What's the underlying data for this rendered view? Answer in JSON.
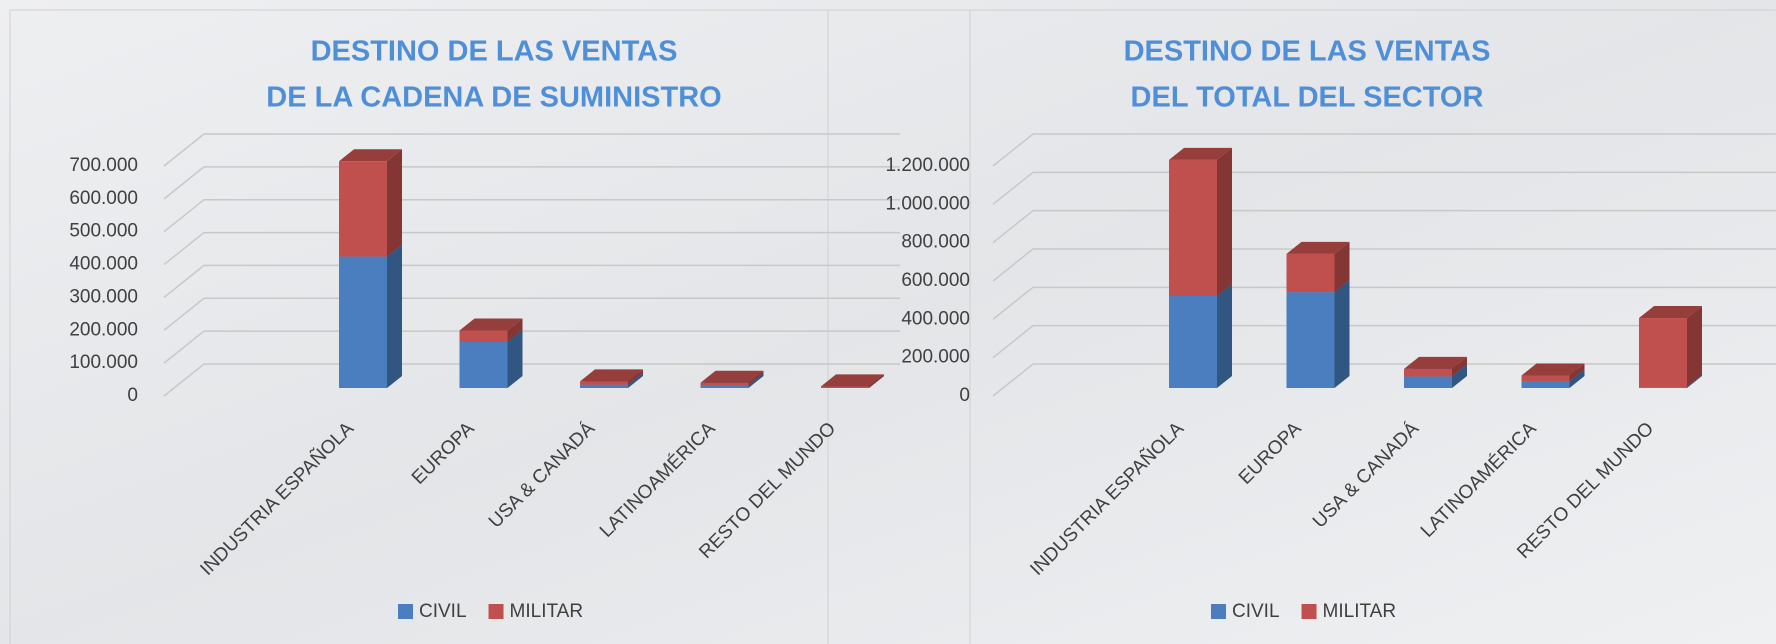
{
  "chart_data": [
    {
      "type": "bar3d_stacked",
      "title": [
        "DESTINO DE LAS VENTAS",
        "DE LA CADENA DE SUMINISTRO"
      ],
      "categories": [
        "INDUSTRIA ESPAÑOLA",
        "EUROPA",
        "USA & CANADÁ",
        "LATINOAMÉRICA",
        "RESTO DEL MUNDO"
      ],
      "series": [
        {
          "name": "CIVIL",
          "color": "#4a7ebf",
          "values": [
            400000,
            140000,
            10000,
            8000,
            0
          ]
        },
        {
          "name": "MILITAR",
          "color": "#c0504d",
          "values": [
            290000,
            35000,
            10000,
            8000,
            5000
          ]
        }
      ],
      "ylim": [
        0,
        700000
      ],
      "yticks": [
        0,
        {
          "value": 100000,
          "label": "100.000"
        },
        {
          "value": 200000,
          "label": "200.000"
        },
        {
          "value": 300000,
          "label": "300.000"
        },
        {
          "value": 400000,
          "label": "400.000"
        },
        {
          "value": 500000,
          "label": "500.000"
        },
        {
          "value": 600000,
          "label": "600.000"
        },
        {
          "value": 700000,
          "label": "700.000"
        }
      ],
      "grid": true,
      "legend": "bottom"
    },
    {
      "type": "bar3d_stacked",
      "title": [
        "DESTINO DE LAS VENTAS",
        "DEL TOTAL DEL SECTOR"
      ],
      "categories": [
        "INDUSTRIA ESPAÑOLA",
        "EUROPA",
        "USA & CANADÁ",
        "LATINOAMÉRICA",
        "RESTO DEL MUNDO"
      ],
      "series": [
        {
          "name": "CIVIL",
          "color": "#4a7ebf",
          "values": [
            480000,
            500000,
            60000,
            35000,
            5000
          ]
        },
        {
          "name": "MILITAR",
          "color": "#c0504d",
          "values": [
            710000,
            200000,
            40000,
            30000,
            360000
          ]
        }
      ],
      "ylim": [
        0,
        1200000
      ],
      "yticks": [
        0,
        {
          "value": 200000,
          "label": "200.000"
        },
        {
          "value": 400000,
          "label": "400.000"
        },
        {
          "value": 600000,
          "label": "600.000"
        },
        {
          "value": 800000,
          "label": "800.000"
        },
        {
          "value": 1000000,
          "label": "1.000.000"
        },
        {
          "value": 1200000,
          "label": "1.200.000"
        }
      ],
      "grid": true,
      "legend": "bottom"
    }
  ]
}
